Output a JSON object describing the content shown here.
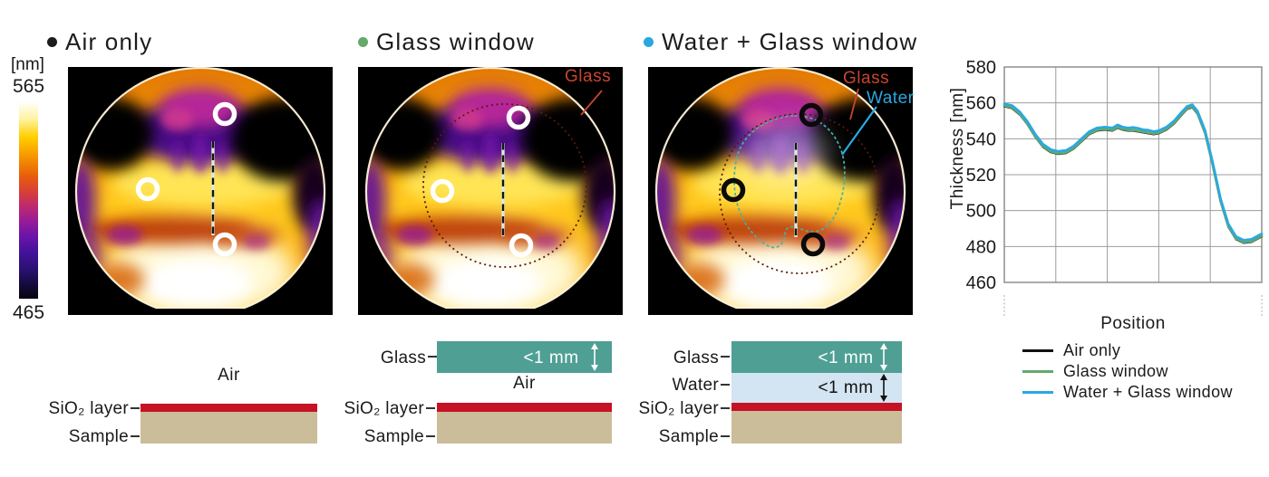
{
  "figure": {
    "panels": [
      {
        "title": "Air only",
        "dot_color": "#1c1c1c"
      },
      {
        "title": "Glass window",
        "dot_color": "#63a96c"
      },
      {
        "title": "Water + Glass window",
        "dot_color": "#29a8e0"
      }
    ],
    "colorbar": {
      "unit": "[nm]",
      "max_label": "565",
      "min_label": "465",
      "gradient": [
        {
          "p": 0,
          "c": "#08030f"
        },
        {
          "p": 7,
          "c": "#140b3c"
        },
        {
          "p": 15,
          "c": "#2a1173"
        },
        {
          "p": 24,
          "c": "#45129b"
        },
        {
          "p": 32,
          "c": "#6d14a8"
        },
        {
          "p": 40,
          "c": "#9c1c96"
        },
        {
          "p": 47,
          "c": "#bf2a6e"
        },
        {
          "p": 54,
          "c": "#d73f3a"
        },
        {
          "p": 62,
          "c": "#e85d0d"
        },
        {
          "p": 72,
          "c": "#f79500"
        },
        {
          "p": 82,
          "c": "#ffcf00"
        },
        {
          "p": 91,
          "c": "#fff3a0"
        },
        {
          "p": 100,
          "c": "#ffffff"
        }
      ]
    },
    "annotations": {
      "glass": "Glass",
      "water": "Water",
      "glass_color": "#c8452e",
      "water_color": "#29a8e0"
    }
  },
  "schematics": {
    "colors": {
      "glass": "#4f9f94",
      "water": "#d3e4f2",
      "sio2": "#c51225",
      "sample": "#cbbd9a"
    },
    "air": {
      "medium": "Air",
      "sio2": "SiO₂ layer",
      "sample": "Sample"
    },
    "glass": {
      "glass": "Glass",
      "glass_thickness": "<1 mm",
      "medium": "Air",
      "sio2": "SiO₂ layer",
      "sample": "Sample"
    },
    "water_glass": {
      "glass": "Glass",
      "glass_thickness": "<1 mm",
      "water": "Water",
      "water_thickness": "<1 mm",
      "sio2": "SiO₂ layer",
      "sample": "Sample"
    }
  },
  "chart_data": {
    "type": "line",
    "title": "",
    "xlabel": "Position",
    "ylabel": "Thickness [nm]",
    "ylim": [
      460,
      580
    ],
    "y_ticks": [
      460,
      480,
      500,
      520,
      540,
      560,
      580
    ],
    "x_divisions": 5,
    "grid": true,
    "legend_position": "below",
    "x": [
      0,
      0.03,
      0.06,
      0.09,
      0.12,
      0.15,
      0.18,
      0.21,
      0.24,
      0.27,
      0.3,
      0.33,
      0.36,
      0.39,
      0.42,
      0.44,
      0.46,
      0.48,
      0.5,
      0.52,
      0.54,
      0.56,
      0.58,
      0.6,
      0.63,
      0.66,
      0.69,
      0.71,
      0.73,
      0.75,
      0.78,
      0.81,
      0.84,
      0.87,
      0.9,
      0.93,
      0.96,
      1.0
    ],
    "series": [
      {
        "name": "Air only",
        "color": "#111111",
        "width": 2.2,
        "values": [
          558,
          557,
          553.5,
          548,
          541,
          535.5,
          532.5,
          531.5,
          532,
          534.5,
          538.5,
          542.5,
          544.5,
          545,
          544.5,
          546,
          545,
          544.5,
          544.5,
          544,
          543.5,
          543,
          542.5,
          543,
          545,
          548.5,
          553.5,
          556.5,
          557.5,
          554,
          543,
          525,
          505,
          491,
          484,
          482,
          482.5,
          485.5
        ]
      },
      {
        "name": "Glass window",
        "color": "#63a96c",
        "width": 2.8,
        "values": [
          558.4,
          557.4,
          553.9,
          548.4,
          541.4,
          535.9,
          532.9,
          531.9,
          532.4,
          534.9,
          538.9,
          542.9,
          544.9,
          545.4,
          544.9,
          546.4,
          545.4,
          544.9,
          544.9,
          544.4,
          543.9,
          543.4,
          542.9,
          543.4,
          545.4,
          548.9,
          553.9,
          556.9,
          557.9,
          554.4,
          543.4,
          525.4,
          505.4,
          491.4,
          484.4,
          482.4,
          482.9,
          485.9
        ]
      },
      {
        "name": "Water + Glass window",
        "color": "#2aa9e0",
        "width": 2.8,
        "values": [
          559.5,
          558.5,
          555,
          549.5,
          542.5,
          537,
          534,
          533,
          533.5,
          536,
          540,
          544,
          546,
          546.5,
          546,
          547.8,
          546.5,
          546,
          546.3,
          545.8,
          545,
          544.8,
          544,
          544.5,
          546.5,
          550,
          555,
          558,
          559,
          555.5,
          544.5,
          526.5,
          506.5,
          492.5,
          485.5,
          483.5,
          484,
          487
        ]
      }
    ],
    "position_axis_gradient": [
      "#161616",
      "#3c464f",
      "#6d8ca6",
      "#a3c9e8",
      "#bcdcf4"
    ]
  }
}
